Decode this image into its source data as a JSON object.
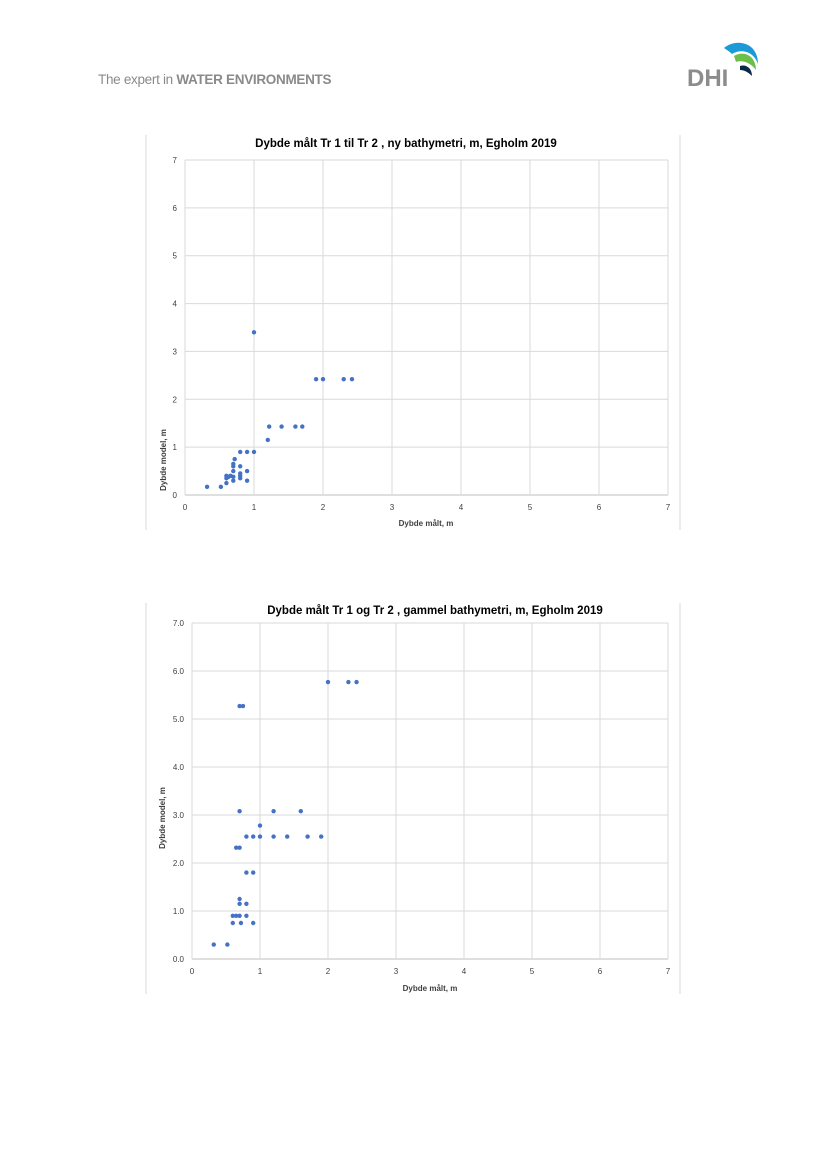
{
  "header": {
    "tagline_prefix": "The expert in ",
    "tagline_bold": "WATER ENVIRONMENTS",
    "logo_text": "DHI"
  },
  "chart_data": [
    {
      "type": "scatter",
      "title": "Dybde målt Tr 1 til Tr 2 , ny bathymetri, m, Egholm 2019",
      "xlabel": "Dybde målt, m",
      "ylabel": "Dybde model, m",
      "xlim": [
        0,
        7
      ],
      "ylim": [
        0,
        7
      ],
      "xticks": [
        "0",
        "1",
        "2",
        "3",
        "4",
        "5",
        "6",
        "7"
      ],
      "yticks": [
        "0",
        "1",
        "2",
        "3",
        "4",
        "5",
        "6",
        "7"
      ],
      "grid": true,
      "color": "#4472c4",
      "points": [
        [
          0.32,
          0.17
        ],
        [
          0.52,
          0.17
        ],
        [
          0.6,
          0.25
        ],
        [
          0.6,
          0.35
        ],
        [
          0.6,
          0.4
        ],
        [
          0.63,
          0.38
        ],
        [
          0.66,
          0.4
        ],
        [
          0.7,
          0.3
        ],
        [
          0.7,
          0.38
        ],
        [
          0.7,
          0.5
        ],
        [
          0.7,
          0.6
        ],
        [
          0.7,
          0.65
        ],
        [
          0.72,
          0.75
        ],
        [
          0.8,
          0.35
        ],
        [
          0.8,
          0.4
        ],
        [
          0.8,
          0.45
        ],
        [
          0.8,
          0.6
        ],
        [
          0.8,
          0.9
        ],
        [
          0.9,
          0.3
        ],
        [
          0.9,
          0.5
        ],
        [
          0.9,
          0.9
        ],
        [
          1.0,
          0.9
        ],
        [
          1.0,
          3.4
        ],
        [
          1.2,
          1.15
        ],
        [
          1.22,
          1.43
        ],
        [
          1.4,
          1.43
        ],
        [
          1.6,
          1.43
        ],
        [
          1.7,
          1.43
        ],
        [
          1.9,
          2.42
        ],
        [
          2.0,
          2.42
        ],
        [
          2.3,
          2.42
        ],
        [
          2.42,
          2.42
        ]
      ]
    },
    {
      "type": "scatter",
      "title": "Dybde målt Tr 1 og Tr 2 ,  gammel bathymetri, m, Egholm 2019",
      "xlabel": "Dybde målt, m",
      "ylabel": "Dybde model, m",
      "xlim": [
        0,
        7
      ],
      "ylim": [
        0,
        7
      ],
      "xticks": [
        "0",
        "1",
        "2",
        "3",
        "4",
        "5",
        "6",
        "7"
      ],
      "yticks": [
        "0.0",
        "1.0",
        "2.0",
        "3.0",
        "4.0",
        "5.0",
        "6.0",
        "7.0"
      ],
      "grid": true,
      "color": "#4472c4",
      "points": [
        [
          0.32,
          0.3
        ],
        [
          0.52,
          0.3
        ],
        [
          0.6,
          0.75
        ],
        [
          0.6,
          0.9
        ],
        [
          0.65,
          0.9
        ],
        [
          0.7,
          0.9
        ],
        [
          0.72,
          0.75
        ],
        [
          0.7,
          1.15
        ],
        [
          0.7,
          1.25
        ],
        [
          0.8,
          1.15
        ],
        [
          0.8,
          0.9
        ],
        [
          0.9,
          0.75
        ],
        [
          0.8,
          1.8
        ],
        [
          0.9,
          1.8
        ],
        [
          0.65,
          2.32
        ],
        [
          0.7,
          2.32
        ],
        [
          0.8,
          2.55
        ],
        [
          0.9,
          2.55
        ],
        [
          1.0,
          2.55
        ],
        [
          1.2,
          2.55
        ],
        [
          1.4,
          2.55
        ],
        [
          1.7,
          2.55
        ],
        [
          1.9,
          2.55
        ],
        [
          1.0,
          2.78
        ],
        [
          0.7,
          3.08
        ],
        [
          1.2,
          3.08
        ],
        [
          1.6,
          3.08
        ],
        [
          0.7,
          5.27
        ],
        [
          0.75,
          5.27
        ],
        [
          2.0,
          5.77
        ],
        [
          2.3,
          5.77
        ],
        [
          2.42,
          5.77
        ]
      ]
    }
  ]
}
